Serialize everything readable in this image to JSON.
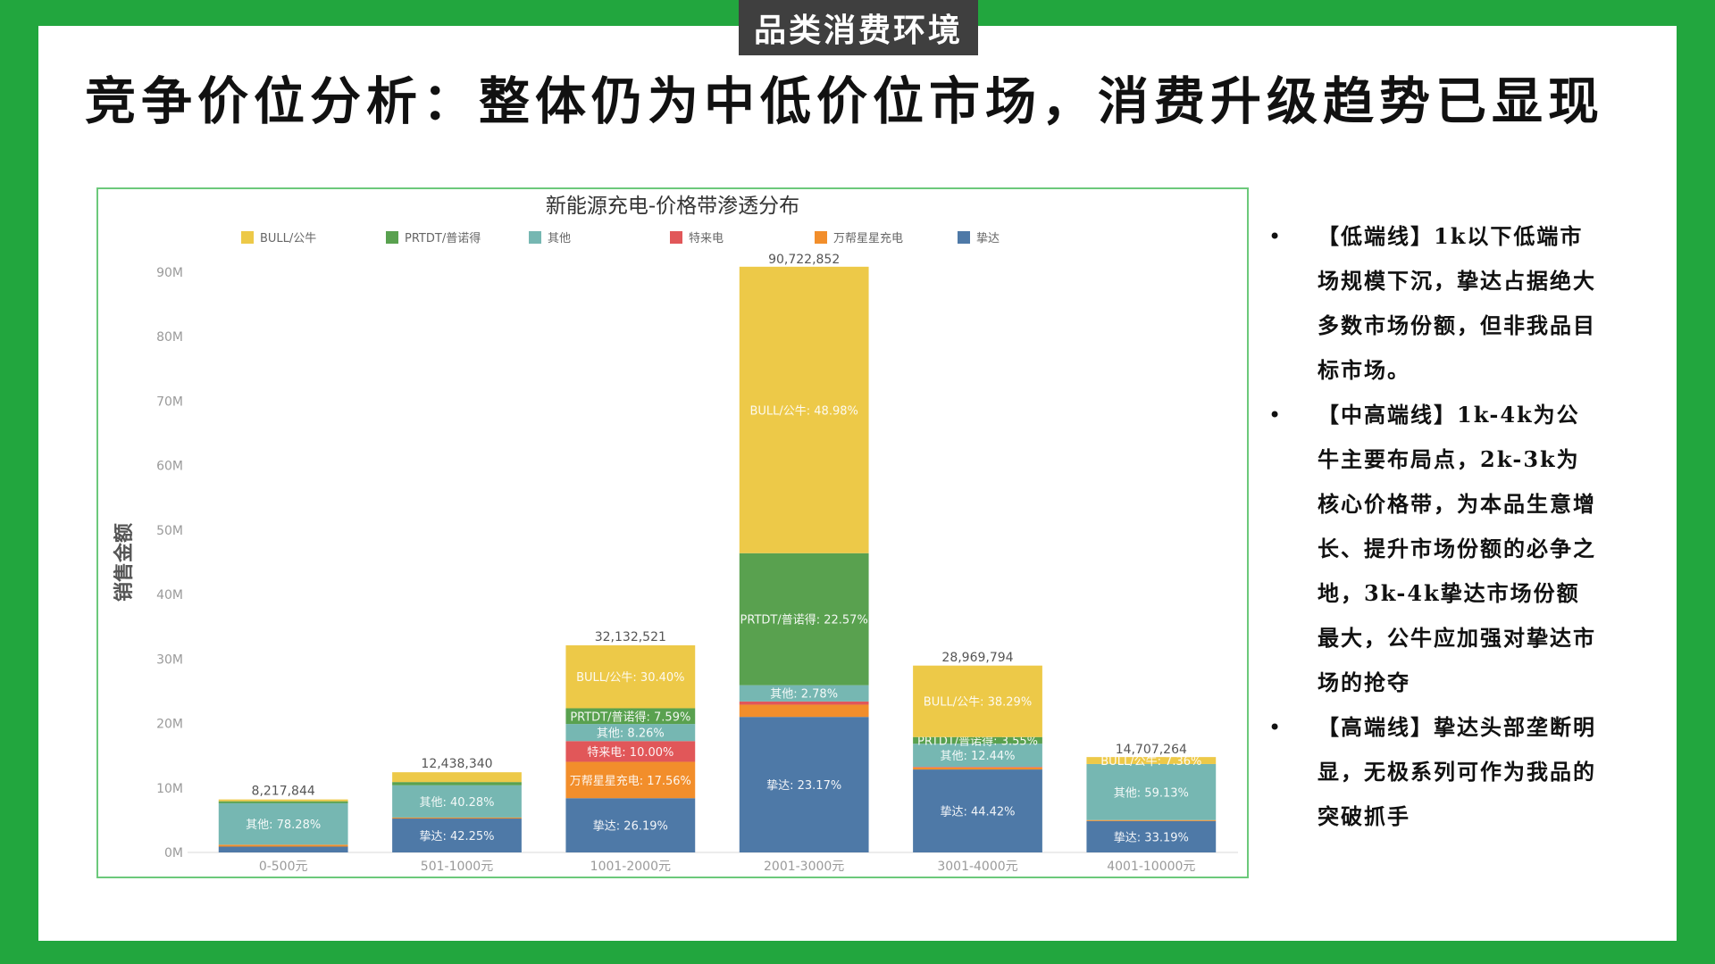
{
  "header": {
    "section_tag": "品类消费环境",
    "title": "竞争价位分析：整体仍为中低价位市场，消费升级趋势已显现"
  },
  "colors": {
    "frame": "#22a63e",
    "tag_background": "#3f3f3f"
  },
  "bullets": [
    {
      "marker": "•",
      "text": "【低端线】1k以下低端市场规模下沉，挚达占据绝大多数市场份额，但非我品目标市场。"
    },
    {
      "marker": "•",
      "text": "【中高端线】1k-4k为公牛主要布局点，2k-3k为核心价格带，为本品生意增长、提升市场份额的必争之地，3k-4k挚达市场份额最大，公牛应加强对挚达市场的抢夺"
    },
    {
      "marker": "•",
      "text": "【高端线】挚达头部垄断明显，无极系列可作为我品的突破抓手"
    }
  ],
  "chart_data": {
    "type": "bar",
    "stacked": true,
    "title": "新能源充电-价格带渗透分布",
    "ylabel": "销售金额",
    "xlabel": "",
    "ylim": [
      0,
      90000000
    ],
    "y_ticks": [
      {
        "value": 0,
        "label": "0M"
      },
      {
        "value": 10000000,
        "label": "10M"
      },
      {
        "value": 20000000,
        "label": "20M"
      },
      {
        "value": 30000000,
        "label": "30M"
      },
      {
        "value": 40000000,
        "label": "40M"
      },
      {
        "value": 50000000,
        "label": "50M"
      },
      {
        "value": 60000000,
        "label": "60M"
      },
      {
        "value": 70000000,
        "label": "70M"
      },
      {
        "value": 80000000,
        "label": "80M"
      },
      {
        "value": 90000000,
        "label": "90M"
      }
    ],
    "grid": false,
    "legend_position": "top",
    "categories": [
      "0-500元",
      "501-1000元",
      "1001-2000元",
      "2001-3000元",
      "3001-4000元",
      "4001-10000元"
    ],
    "totals": [
      8217844,
      12438340,
      32132521,
      90722852,
      28969794,
      14707264
    ],
    "total_labels": [
      "8,217,844",
      "12,438,340",
      "32,132,521",
      "90,722,852",
      "28,969,794",
      "14,707,264"
    ],
    "series": [
      {
        "name": "挚达",
        "color": "#4e79a7",
        "values": [
          900000,
          5257000,
          8416000,
          21020000,
          12868000,
          4868000
        ],
        "labels": [
          null,
          "挚达: 42.25%",
          "挚达: 26.19%",
          "挚达: 23.17%",
          "挚达: 44.42%",
          "挚达: 33.19%"
        ]
      },
      {
        "name": "万帮星星充电",
        "color": "#f28e2b",
        "values": [
          300000,
          150000,
          5643000,
          1900000,
          300000,
          150000
        ],
        "labels": [
          null,
          null,
          "万帮星星充电: 17.56%",
          null,
          null,
          null
        ]
      },
      {
        "name": "特来电",
        "color": "#e15759",
        "values": [
          0,
          0,
          3213000,
          500000,
          100000,
          0
        ],
        "labels": [
          null,
          null,
          "特来电: 10.00%",
          null,
          null,
          null
        ]
      },
      {
        "name": "其他",
        "color": "#76b7b2",
        "values": [
          6433000,
          5010000,
          2654000,
          2522000,
          3603000,
          8696000
        ],
        "labels": [
          "其他: 78.28%",
          "其他: 40.28%",
          "其他: 8.26%",
          "其他: 2.78%",
          "其他: 12.44%",
          "其他: 59.13%"
        ]
      },
      {
        "name": "PRTDT/普诺得",
        "color": "#59a14f",
        "values": [
          300000,
          500000,
          2439000,
          20476000,
          1028000,
          0
        ],
        "labels": [
          null,
          null,
          "PRTDT/普诺得: 7.59%",
          "PRTDT/普诺得: 22.57%",
          "PRTDT/普诺得: 3.55%",
          null
        ]
      },
      {
        "name": "BULL/公牛",
        "color": "#edc948",
        "values": [
          284844,
          1521340,
          9768000,
          44437000,
          11084000,
          1082000
        ],
        "labels": [
          null,
          null,
          "BULL/公牛: 30.40%",
          "BULL/公牛: 48.98%",
          "BULL/公牛: 38.29%",
          "BULL/公牛: 7.36%"
        ]
      }
    ],
    "legend_order": [
      "BULL/公牛",
      "PRTDT/普诺得",
      "其他",
      "特来电",
      "万帮星星充电",
      "挚达"
    ]
  }
}
